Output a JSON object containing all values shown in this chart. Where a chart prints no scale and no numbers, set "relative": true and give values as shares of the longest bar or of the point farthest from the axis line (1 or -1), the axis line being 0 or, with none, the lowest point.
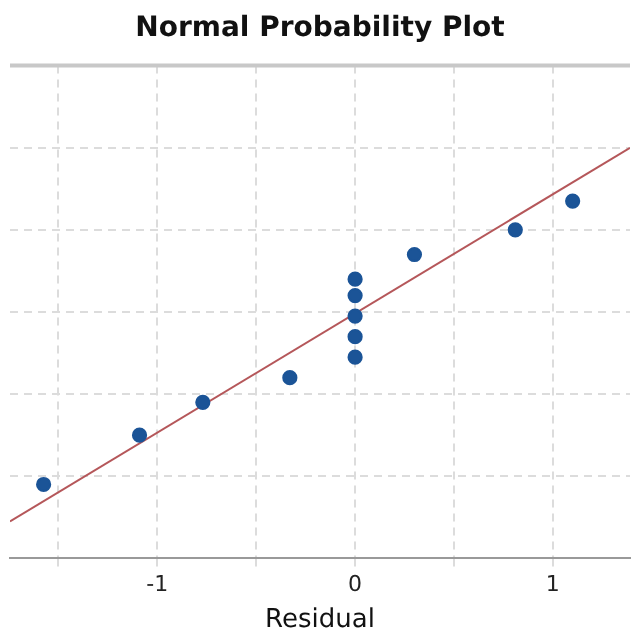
{
  "chart_data": {
    "type": "scatter",
    "title": "Normal Probability Plot",
    "xlabel": "Residual",
    "relative": true,
    "xlim": [
      -1.745,
      1.39
    ],
    "xticks": [
      {
        "value": -1.5,
        "label": null
      },
      -1,
      {
        "value": -0.5,
        "label": null
      },
      0,
      {
        "value": 0.5,
        "label": null
      },
      1
    ],
    "grid": true,
    "legend": false,
    "series": [
      {
        "type": "scatter",
        "marker": "circle",
        "color": "#1b5497",
        "x": [
          -1.575,
          -1.09,
          -0.77,
          -0.33,
          0,
          0,
          0,
          0,
          0,
          0.3,
          0.81,
          1.1
        ],
        "values": [
          0.18,
          0.3,
          0.38,
          0.44,
          0.49,
          0.54,
          0.59,
          0.64,
          0.68,
          0.74,
          0.8,
          0.87
        ]
      },
      {
        "type": "line",
        "marker": "none",
        "color": "#b5575a",
        "x": [
          -1.745,
          1.39
        ],
        "values": [
          0.09,
          1.0
        ]
      }
    ]
  }
}
